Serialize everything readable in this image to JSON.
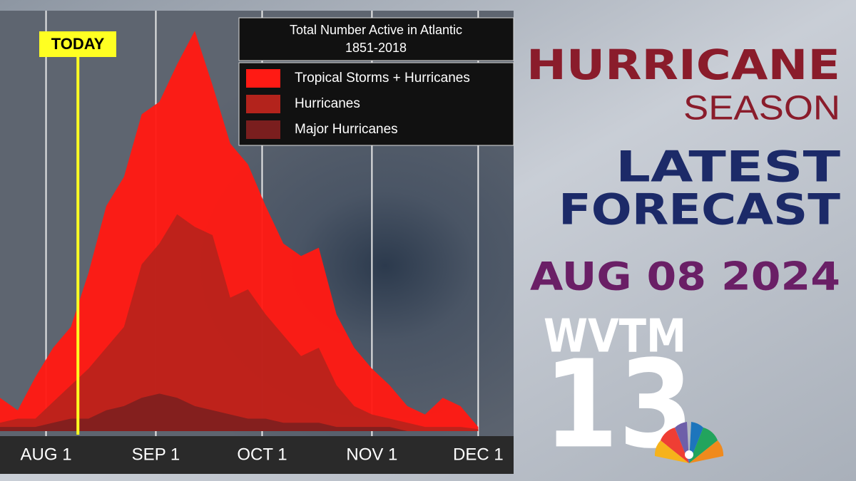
{
  "chart_data": {
    "type": "area",
    "title": "Total Number Active in Atlantic",
    "subtitle": "1851-2018",
    "annotation": {
      "text": "TODAY",
      "x": 9,
      "color": "#ffff22"
    },
    "x": [
      -13,
      -8,
      -3,
      2,
      7,
      12,
      17,
      22,
      27,
      32,
      37,
      42,
      47,
      52,
      57,
      62,
      67,
      72,
      77,
      82,
      87,
      92,
      97,
      102,
      107,
      112,
      117,
      122
    ],
    "xlim": [
      -13,
      132
    ],
    "xticks": [
      {
        "value": 0,
        "label": "AUG 1"
      },
      {
        "value": 31,
        "label": "SEP 1"
      },
      {
        "value": 61,
        "label": "OCT 1"
      },
      {
        "value": 92,
        "label": "NOV 1"
      },
      {
        "value": 122,
        "label": "DEC 1"
      }
    ],
    "ylim": [
      0,
      100
    ],
    "grid": true,
    "legend": "top-right",
    "series": [
      {
        "name": "Tropical Storms + Hurricanes",
        "color": "#ff1a14",
        "values": [
          8,
          5,
          13,
          20,
          25,
          38,
          54,
          61,
          76,
          79,
          88,
          96,
          83,
          69,
          64,
          54,
          45,
          42,
          44,
          28,
          20,
          15,
          11,
          6,
          4,
          8,
          6,
          1
        ]
      },
      {
        "name": "Hurricanes",
        "color": "#b3231c",
        "values": [
          2,
          3,
          3,
          7,
          11,
          15,
          20,
          25,
          40,
          45,
          52,
          49,
          47,
          32,
          34,
          28,
          23,
          18,
          20,
          11,
          6,
          4,
          3,
          2,
          1,
          1,
          1,
          0.5
        ]
      },
      {
        "name": "Major Hurricanes",
        "color": "#7a1e1e",
        "values": [
          1,
          1,
          1,
          2,
          3,
          3,
          5,
          6,
          8,
          9,
          8,
          6,
          5,
          4,
          3,
          3,
          2,
          2,
          2,
          1,
          1,
          1,
          1,
          0,
          0,
          0,
          0,
          0
        ]
      }
    ]
  },
  "branding": {
    "headline1": "HURRICANE",
    "headline2": "SEASON",
    "headline3": "LATEST",
    "headline4": "FORECAST",
    "date": "AUG 08 2024",
    "station": "WVTM",
    "channel": "13"
  }
}
